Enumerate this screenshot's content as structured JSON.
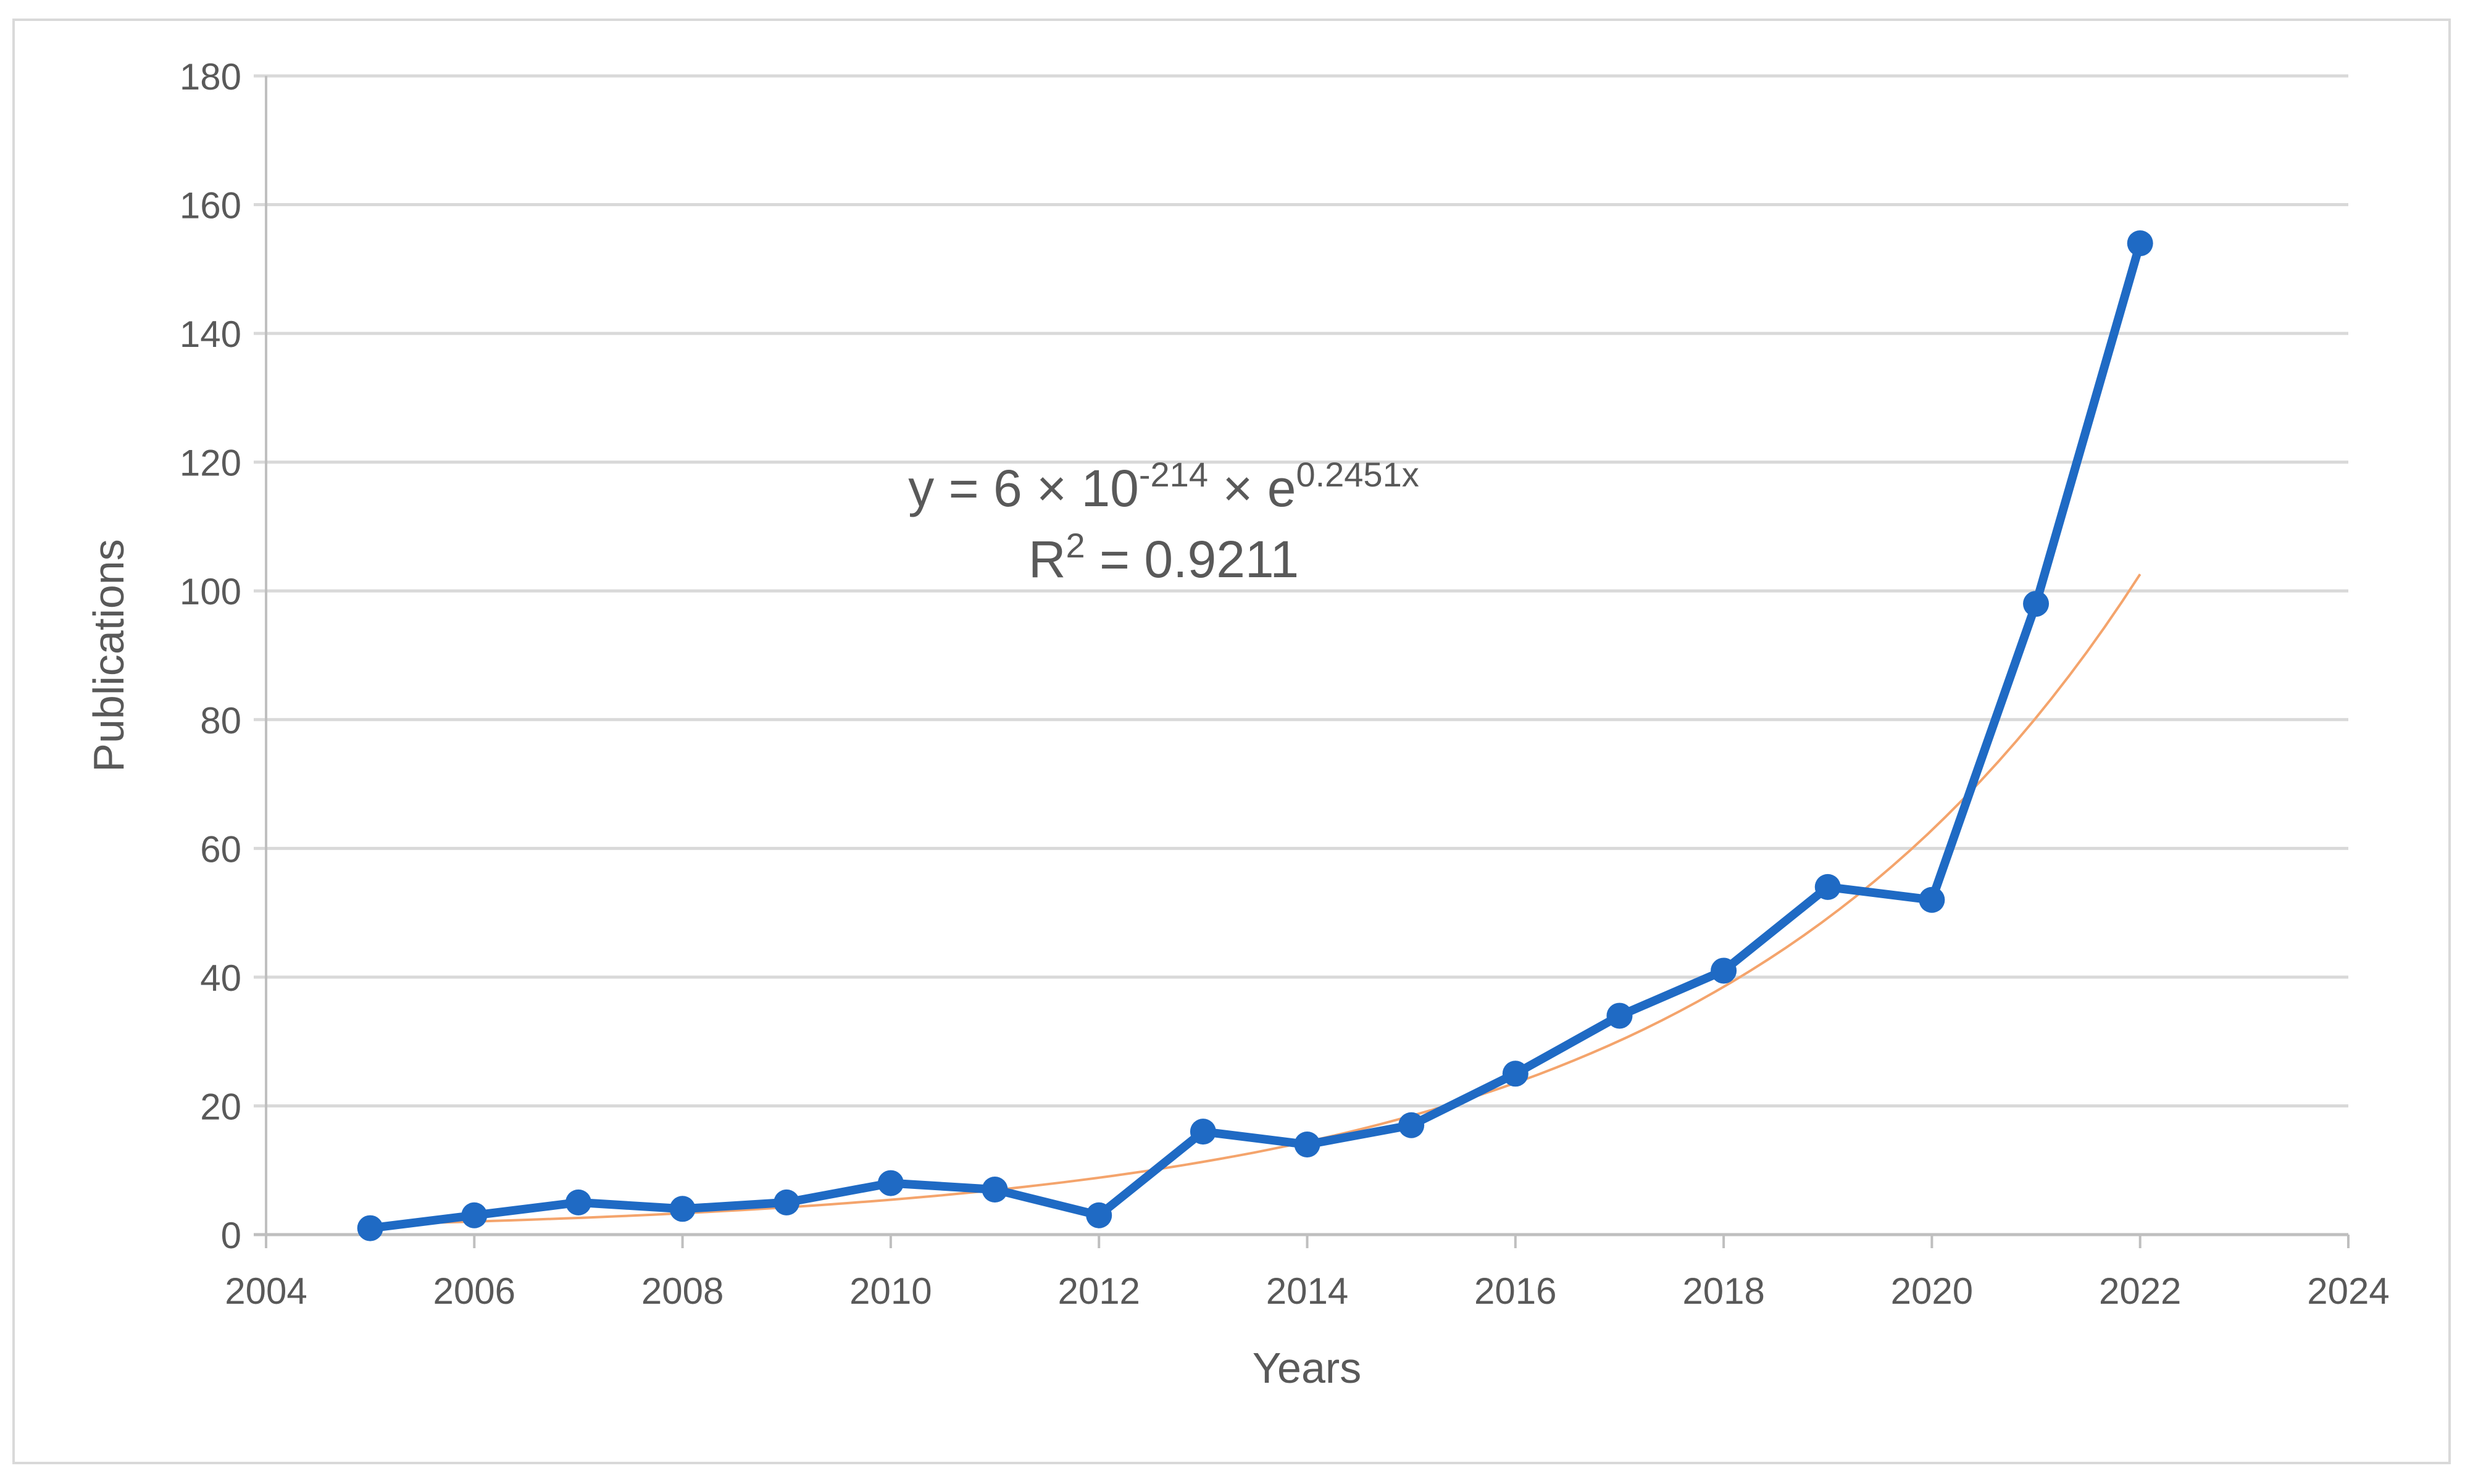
{
  "chart_data": {
    "type": "line",
    "xlabel": "Years",
    "ylabel": "Publications",
    "xlim": [
      2004,
      2024
    ],
    "ylim": [
      0,
      180
    ],
    "xticks": [
      2004,
      2006,
      2008,
      2010,
      2012,
      2014,
      2016,
      2018,
      2020,
      2022,
      2024
    ],
    "yticks": [
      0,
      20,
      40,
      60,
      80,
      100,
      120,
      140,
      160,
      180
    ],
    "grid": true,
    "legend": "none",
    "series": [
      {
        "x": [
          2005,
          2006,
          2007,
          2008,
          2009,
          2010,
          2011,
          2012,
          2013,
          2014,
          2015,
          2016,
          2017,
          2018,
          2019,
          2020,
          2021,
          2022
        ],
        "y": [
          1,
          3,
          5,
          4,
          5,
          8,
          7,
          3,
          16,
          14,
          17,
          25,
          34,
          41,
          54,
          52,
          98,
          154
        ],
        "color": "#1f6ac4",
        "markers": true
      }
    ],
    "trendline": {
      "type": "exponential",
      "a": 6e-214,
      "b": 0.2451,
      "x_range": [
        2005,
        2022
      ],
      "color": "#f4a46c",
      "equation_label": {
        "prefix": "y = 6 × 10",
        "exp1": "-214",
        "middle": " × e",
        "exp2": "0.2451x"
      },
      "r2_label": {
        "prefix": "R",
        "sup": "2",
        "suffix": " = 0.9211"
      }
    }
  }
}
